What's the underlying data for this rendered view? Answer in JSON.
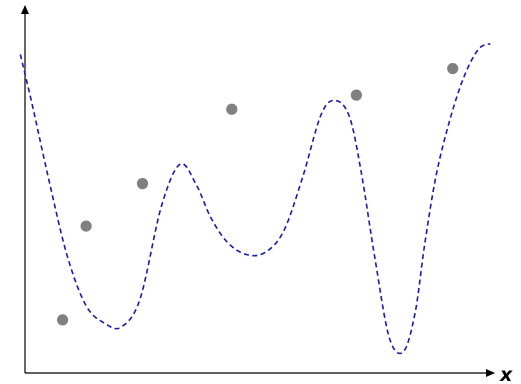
{
  "chart_data": {
    "type": "scatter",
    "title": "",
    "xlabel": "x",
    "ylabel": "",
    "xlim": [
      0,
      10
    ],
    "ylim": [
      0,
      10
    ],
    "grid": false,
    "legend": "none",
    "series": [
      {
        "kind": "points",
        "color": "#808080",
        "x": [
          0.8,
          1.3,
          2.5,
          4.4,
          7.05,
          9.1
        ],
        "y": [
          1.5,
          4.15,
          5.35,
          7.45,
          7.85,
          8.6
        ]
      },
      {
        "kind": "dashed-curve",
        "color": "#1a1aa8",
        "x": [
          -0.1,
          0.15,
          0.5,
          0.9,
          1.3,
          1.7,
          2.05,
          2.45,
          2.9,
          3.3,
          3.65,
          3.95,
          4.3,
          4.7,
          5.1,
          5.5,
          5.9,
          6.3,
          6.6,
          6.9,
          7.15,
          7.45,
          7.75,
          8.05,
          8.3,
          8.5,
          8.75,
          9.05,
          9.35,
          9.65,
          9.9
        ],
        "y": [
          9.0,
          7.6,
          5.5,
          3.3,
          1.9,
          1.4,
          1.3,
          2.1,
          4.7,
          5.9,
          5.3,
          4.4,
          3.7,
          3.35,
          3.4,
          4.0,
          5.5,
          7.3,
          7.7,
          7.25,
          5.7,
          3.2,
          1.0,
          0.6,
          1.7,
          3.6,
          5.6,
          7.2,
          8.4,
          9.15,
          9.3
        ]
      }
    ],
    "axis_label_x": "x"
  }
}
